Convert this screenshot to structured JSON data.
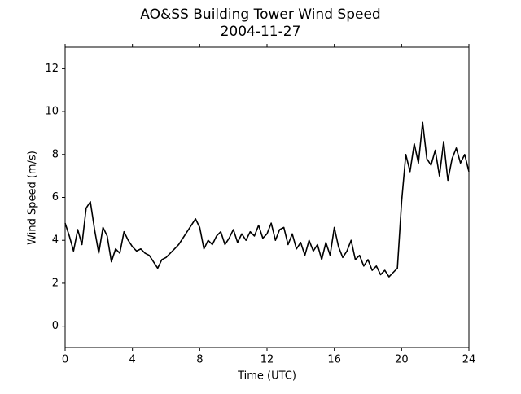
{
  "chart_data": {
    "type": "line",
    "title": "AO&SS Building Tower Wind Speed",
    "subtitle": "2004-11-27",
    "xlabel": "Time (UTC)",
    "ylabel": "Wind Speed (m/s)",
    "x": [
      0,
      0.25,
      0.5,
      0.75,
      1,
      1.25,
      1.5,
      1.75,
      2,
      2.25,
      2.5,
      2.75,
      3,
      3.25,
      3.5,
      3.75,
      4,
      4.25,
      4.5,
      4.75,
      5,
      5.25,
      5.5,
      5.75,
      6,
      6.25,
      6.5,
      6.75,
      7,
      7.25,
      7.5,
      7.75,
      8,
      8.25,
      8.5,
      8.75,
      9,
      9.25,
      9.5,
      9.75,
      10,
      10.25,
      10.5,
      10.75,
      11,
      11.25,
      11.5,
      11.75,
      12,
      12.25,
      12.5,
      12.75,
      13,
      13.25,
      13.5,
      13.75,
      14,
      14.25,
      14.5,
      14.75,
      15,
      15.25,
      15.5,
      15.75,
      16,
      16.25,
      16.5,
      16.75,
      17,
      17.25,
      17.5,
      17.75,
      18,
      18.25,
      18.5,
      18.75,
      19,
      19.25,
      19.5,
      19.75,
      20,
      20.25,
      20.5,
      20.75,
      21,
      21.25,
      21.5,
      21.75,
      22,
      22.25,
      22.5,
      22.75,
      23,
      23.25,
      23.5,
      23.75,
      24
    ],
    "series": [
      {
        "name": "Wind Speed",
        "color": "#000000",
        "values": [
          4.8,
          4.2,
          3.5,
          4.5,
          3.8,
          5.5,
          5.8,
          4.5,
          3.4,
          4.6,
          4.2,
          3.0,
          3.6,
          3.4,
          4.4,
          4.0,
          3.7,
          3.5,
          3.6,
          3.4,
          3.3,
          3.0,
          2.7,
          3.1,
          3.2,
          3.4,
          3.6,
          3.8,
          4.1,
          4.4,
          4.7,
          5.0,
          4.6,
          3.6,
          4.0,
          3.8,
          4.2,
          4.4,
          3.8,
          4.1,
          4.5,
          3.9,
          4.3,
          4.0,
          4.4,
          4.2,
          4.7,
          4.1,
          4.3,
          4.8,
          4.0,
          4.5,
          4.6,
          3.8,
          4.3,
          3.6,
          3.9,
          3.3,
          4.0,
          3.5,
          3.8,
          3.1,
          3.9,
          3.3,
          4.6,
          3.7,
          3.2,
          3.5,
          4.0,
          3.1,
          3.3,
          2.8,
          3.1,
          2.6,
          2.8,
          2.4,
          2.6,
          2.3,
          2.5,
          2.7,
          5.8,
          8.0,
          7.2,
          8.5,
          7.6,
          9.5,
          7.8,
          7.5,
          8.2,
          7.0,
          8.6,
          6.8,
          7.8,
          8.3,
          7.6,
          8.0,
          7.2
        ]
      }
    ],
    "xlim": [
      0,
      24
    ],
    "xticks": [
      0,
      4,
      8,
      12,
      16,
      20,
      24
    ],
    "ylim": [
      -1,
      13
    ],
    "yticks": [
      0,
      2,
      4,
      6,
      8,
      10,
      12
    ],
    "grid": false
  }
}
